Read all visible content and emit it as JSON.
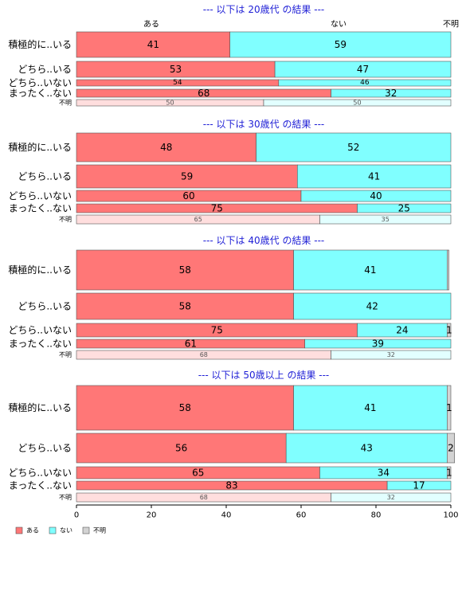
{
  "chart_data": {
    "type": "bar",
    "orientation": "horizontal",
    "stacked": "100%",
    "column_labels": [
      "ある",
      "ない",
      "不明"
    ],
    "legend": {
      "position": "bottom-left",
      "items": [
        {
          "label": "ある",
          "color": "#ff7777"
        },
        {
          "label": "ない",
          "color": "#80ffff"
        },
        {
          "label": "不明",
          "color": "#d3d3d3"
        }
      ]
    },
    "unknown_row_colors": [
      "#ffdede",
      "#e2ffff",
      "#f1f1f1"
    ],
    "xaxis": {
      "ticks": [
        0,
        20,
        40,
        60,
        80,
        100
      ],
      "xlim": [
        0,
        100
      ]
    },
    "categories": [
      "積極的に..いる",
      "どちら..いる",
      "どちら..いない",
      "まったく..ない",
      "不明"
    ],
    "panels": [
      {
        "title": "--- 以下は 20歳代 の結果 ---",
        "rows": [
          {
            "label": "積極的に..いる",
            "values": [
              41,
              59,
              0
            ]
          },
          {
            "label": "どちら..いる",
            "values": [
              53,
              47,
              0
            ]
          },
          {
            "label": "どちら..いない",
            "values": [
              54,
              46,
              0
            ]
          },
          {
            "label": "まったく..ない",
            "values": [
              68,
              32,
              0
            ]
          },
          {
            "label": "不明",
            "values": [
              50,
              50,
              0
            ]
          }
        ]
      },
      {
        "title": "--- 以下は 30歳代 の結果 ---",
        "rows": [
          {
            "label": "積極的に..いる",
            "values": [
              48,
              52,
              0
            ]
          },
          {
            "label": "どちら..いる",
            "values": [
              59,
              41,
              0
            ]
          },
          {
            "label": "どちら..いない",
            "values": [
              60,
              40,
              0
            ]
          },
          {
            "label": "まったく..ない",
            "values": [
              75,
              25,
              0
            ]
          },
          {
            "label": "不明",
            "values": [
              65,
              35,
              0
            ]
          }
        ]
      },
      {
        "title": "--- 以下は 40歳代 の結果 ---",
        "rows": [
          {
            "label": "積極的に..いる",
            "values": [
              58,
              41,
              0.5
            ],
            "printed": [
              "58",
              "41",
              ""
            ]
          },
          {
            "label": "どちら..いる",
            "values": [
              58,
              42,
              0
            ]
          },
          {
            "label": "どちら..いない",
            "values": [
              75,
              24,
              1
            ]
          },
          {
            "label": "まったく..ない",
            "values": [
              61,
              39,
              0
            ]
          },
          {
            "label": "不明",
            "values": [
              68,
              32,
              0
            ]
          }
        ]
      },
      {
        "title": "--- 以下は 50歳以上 の結果 ---",
        "rows": [
          {
            "label": "積極的に..いる",
            "values": [
              58,
              41,
              1
            ]
          },
          {
            "label": "どちら..いる",
            "values": [
              56,
              43,
              2
            ]
          },
          {
            "label": "どちら..いない",
            "values": [
              65,
              34,
              1
            ]
          },
          {
            "label": "まったく..ない",
            "values": [
              83,
              17,
              0
            ]
          },
          {
            "label": "不明",
            "values": [
              68,
              32,
              0
            ]
          }
        ]
      }
    ]
  }
}
